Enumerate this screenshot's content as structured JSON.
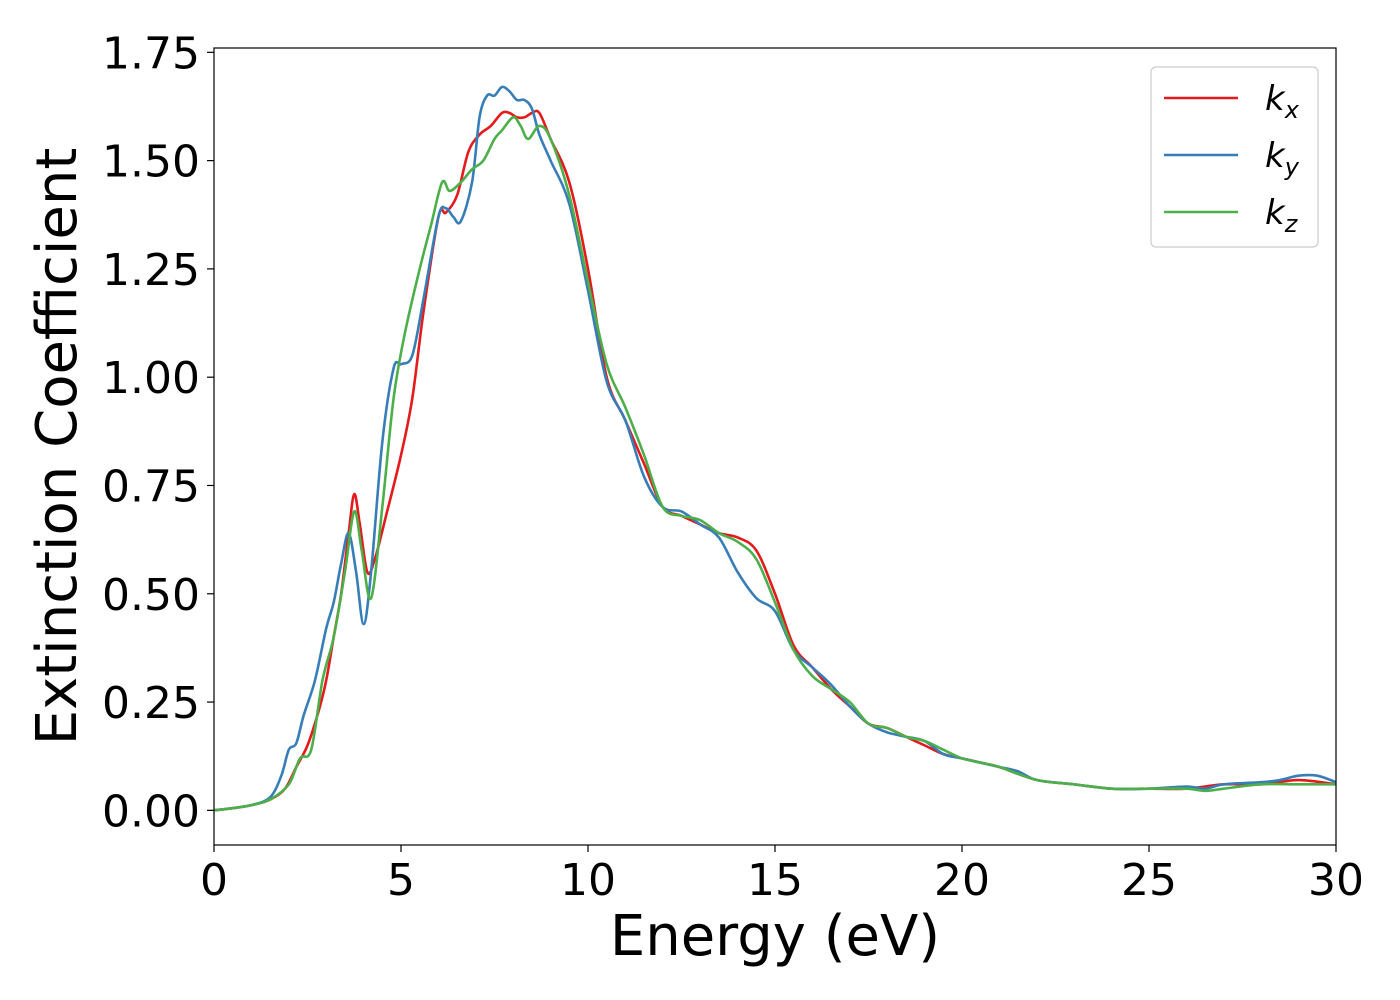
{
  "chart_data": {
    "type": "line",
    "xlabel": "Energy (eV)",
    "ylabel": "Extinction Coefficient",
    "xlim": [
      0,
      30
    ],
    "ylim": [
      -0.08,
      1.76
    ],
    "xticks": [
      0,
      5,
      10,
      15,
      20,
      25,
      30
    ],
    "xtick_labels": [
      "0",
      "5",
      "10",
      "15",
      "20",
      "25",
      "30"
    ],
    "yticks": [
      0.0,
      0.25,
      0.5,
      0.75,
      1.0,
      1.25,
      1.5,
      1.75
    ],
    "ytick_labels": [
      "0.00",
      "0.25",
      "0.50",
      "0.75",
      "1.00",
      "1.25",
      "1.50",
      "1.75"
    ],
    "grid": false,
    "legend_position": "top-right",
    "series": [
      {
        "name": "k",
        "subscript": "x",
        "color": "#e41a1c",
        "x": [
          0,
          0.5,
          1,
          1.5,
          1.9,
          2.2,
          2.5,
          2.8,
          3.0,
          3.2,
          3.4,
          3.6,
          3.75,
          3.9,
          4.1,
          4.3,
          4.6,
          5.0,
          5.3,
          5.6,
          6.0,
          6.2,
          6.5,
          6.8,
          7.1,
          7.4,
          7.7,
          7.9,
          8.1,
          8.3,
          8.5,
          8.7,
          9.0,
          9.5,
          10.0,
          10.5,
          11.0,
          11.5,
          12.0,
          12.5,
          13.0,
          13.5,
          14.0,
          14.5,
          15.0,
          15.5,
          16.0,
          16.5,
          17.0,
          17.5,
          18.0,
          18.5,
          19.0,
          19.5,
          20.0,
          20.5,
          21.0,
          22.0,
          23.0,
          24.0,
          25.0,
          26.0,
          27.0,
          28.0,
          29.0,
          30.0
        ],
        "y": [
          0.0,
          0.005,
          0.012,
          0.025,
          0.05,
          0.1,
          0.15,
          0.23,
          0.3,
          0.4,
          0.5,
          0.64,
          0.73,
          0.66,
          0.55,
          0.58,
          0.68,
          0.82,
          0.95,
          1.15,
          1.37,
          1.38,
          1.42,
          1.52,
          1.56,
          1.58,
          1.61,
          1.61,
          1.6,
          1.6,
          1.61,
          1.61,
          1.55,
          1.45,
          1.25,
          1.0,
          0.9,
          0.8,
          0.7,
          0.68,
          0.66,
          0.64,
          0.63,
          0.6,
          0.5,
          0.38,
          0.33,
          0.28,
          0.24,
          0.2,
          0.19,
          0.17,
          0.15,
          0.13,
          0.12,
          0.11,
          0.1,
          0.07,
          0.06,
          0.05,
          0.05,
          0.05,
          0.06,
          0.06,
          0.07,
          0.06
        ]
      },
      {
        "name": "k",
        "subscript": "y",
        "color": "#377eb8",
        "x": [
          0,
          0.5,
          1,
          1.5,
          1.8,
          2.0,
          2.2,
          2.4,
          2.7,
          3.0,
          3.2,
          3.4,
          3.6,
          3.8,
          4.0,
          4.2,
          4.5,
          4.8,
          5.0,
          5.3,
          5.6,
          6.0,
          6.2,
          6.4,
          6.6,
          6.9,
          7.1,
          7.3,
          7.5,
          7.7,
          7.9,
          8.1,
          8.3,
          8.5,
          8.7,
          9.0,
          9.5,
          10.0,
          10.5,
          11.0,
          11.5,
          12.0,
          12.5,
          13.0,
          13.5,
          14.0,
          14.5,
          15.0,
          15.5,
          16.0,
          16.5,
          17.0,
          17.5,
          18.0,
          18.5,
          19.0,
          19.5,
          20.0,
          20.5,
          21.0,
          21.5,
          22.0,
          23.0,
          24.0,
          25.0,
          26.0,
          26.5,
          27.0,
          28.0,
          28.5,
          29.0,
          29.5,
          30.0
        ],
        "y": [
          0.0,
          0.005,
          0.012,
          0.03,
          0.08,
          0.14,
          0.155,
          0.22,
          0.3,
          0.42,
          0.48,
          0.57,
          0.64,
          0.55,
          0.43,
          0.55,
          0.85,
          1.02,
          1.03,
          1.05,
          1.18,
          1.37,
          1.39,
          1.37,
          1.36,
          1.45,
          1.6,
          1.65,
          1.65,
          1.67,
          1.66,
          1.64,
          1.64,
          1.62,
          1.56,
          1.5,
          1.4,
          1.2,
          0.99,
          0.9,
          0.77,
          0.7,
          0.69,
          0.66,
          0.63,
          0.55,
          0.49,
          0.46,
          0.37,
          0.33,
          0.29,
          0.24,
          0.2,
          0.18,
          0.17,
          0.16,
          0.13,
          0.12,
          0.11,
          0.1,
          0.09,
          0.07,
          0.06,
          0.05,
          0.05,
          0.055,
          0.05,
          0.06,
          0.065,
          0.07,
          0.08,
          0.08,
          0.065
        ]
      },
      {
        "name": "k",
        "subscript": "z",
        "color": "#4daf4a",
        "x": [
          0,
          0.5,
          1,
          1.5,
          2.0,
          2.3,
          2.6,
          2.9,
          3.2,
          3.5,
          3.75,
          3.95,
          4.2,
          4.5,
          4.8,
          5.1,
          5.5,
          5.8,
          6.1,
          6.3,
          6.6,
          6.9,
          7.2,
          7.5,
          7.7,
          8.0,
          8.2,
          8.4,
          8.7,
          9.0,
          9.5,
          10.0,
          10.5,
          11.0,
          11.5,
          12.0,
          12.5,
          13.0,
          13.5,
          14.0,
          14.5,
          15.0,
          15.5,
          16.0,
          16.5,
          17.0,
          17.5,
          18.0,
          18.5,
          19.0,
          19.5,
          20.0,
          20.5,
          21.0,
          22.0,
          23.0,
          24.0,
          25.0,
          26.0,
          26.5,
          27.0,
          28.0,
          29.0,
          30.0
        ],
        "y": [
          0.0,
          0.005,
          0.012,
          0.025,
          0.06,
          0.12,
          0.14,
          0.3,
          0.4,
          0.55,
          0.69,
          0.6,
          0.49,
          0.7,
          0.95,
          1.1,
          1.25,
          1.35,
          1.45,
          1.43,
          1.45,
          1.48,
          1.5,
          1.55,
          1.57,
          1.6,
          1.58,
          1.55,
          1.58,
          1.55,
          1.42,
          1.22,
          1.03,
          0.93,
          0.82,
          0.7,
          0.68,
          0.67,
          0.64,
          0.62,
          0.58,
          0.48,
          0.37,
          0.31,
          0.28,
          0.25,
          0.2,
          0.19,
          0.17,
          0.16,
          0.14,
          0.12,
          0.11,
          0.1,
          0.07,
          0.06,
          0.05,
          0.05,
          0.05,
          0.045,
          0.05,
          0.06,
          0.06,
          0.06
        ]
      }
    ]
  }
}
